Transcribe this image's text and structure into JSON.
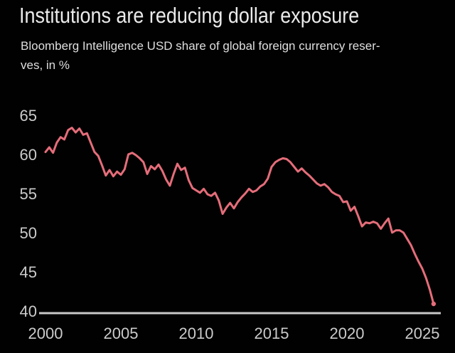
{
  "header": {
    "title": "Institutions are reducing dollar exposure",
    "subtitle_line1": "Bloomberg Intelligence USD share of global foreign currency reser-",
    "subtitle_line2": "ves, in %"
  },
  "colors": {
    "background": "#010101",
    "line": "#e56d7a",
    "axis_line": "#c8c8c8",
    "title_text": "#eaeaea",
    "subtitle_text": "#dfdfdf",
    "tick_text": "#cbcbcb"
  },
  "chart_data": {
    "type": "line",
    "title": "Institutions are reducing dollar exposure",
    "subtitle": "Bloomberg Intelligence USD share of global foreign currency reserves, in %",
    "series_name": "USD share of global foreign currency reserves (%)",
    "grid": false,
    "legend": "none",
    "x_start": 2000,
    "x_step": 0.25,
    "xlim": [
      2000,
      2026.2
    ],
    "ylim": [
      40,
      65
    ],
    "x_ticks": [
      2000,
      2005,
      2010,
      2015,
      2020,
      2025
    ],
    "y_ticks": [
      65,
      60,
      55,
      50,
      45,
      40
    ],
    "values": [
      60.4,
      61.0,
      60.3,
      61.6,
      62.3,
      62.0,
      63.2,
      63.5,
      62.9,
      63.4,
      62.6,
      62.8,
      61.6,
      60.4,
      59.9,
      58.7,
      57.4,
      58.1,
      57.3,
      57.9,
      57.5,
      58.2,
      60.1,
      60.3,
      60.0,
      59.6,
      59.1,
      57.6,
      58.6,
      58.2,
      58.8,
      58.0,
      56.9,
      56.1,
      57.6,
      58.9,
      58.1,
      58.4,
      56.8,
      55.8,
      55.5,
      55.2,
      55.7,
      55.0,
      54.8,
      55.2,
      54.2,
      52.5,
      53.3,
      53.9,
      53.2,
      54.0,
      54.6,
      55.1,
      55.7,
      55.3,
      55.5,
      56.0,
      56.3,
      57.0,
      58.5,
      59.1,
      59.4,
      59.6,
      59.5,
      59.1,
      58.5,
      57.9,
      58.3,
      57.8,
      57.4,
      56.9,
      56.4,
      56.1,
      56.3,
      55.9,
      55.3,
      55.0,
      54.8,
      54.0,
      54.1,
      52.9,
      53.4,
      52.2,
      50.9,
      51.4,
      51.3,
      51.5,
      51.3,
      50.6,
      51.3,
      51.9,
      50.1,
      50.4,
      50.4,
      50.1,
      49.3,
      48.5,
      47.4,
      46.4,
      45.5,
      44.3,
      42.8,
      41.0
    ]
  }
}
